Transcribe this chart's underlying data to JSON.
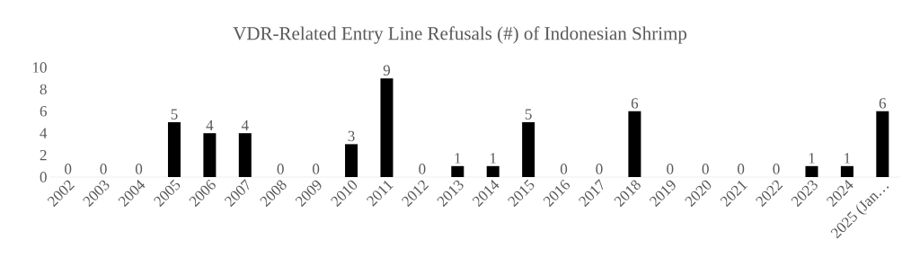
{
  "chart_data": {
    "type": "bar",
    "title": "VDR-Related Entry Line Refusals (#) of Indonesian Shrimp",
    "categories": [
      "2002",
      "2003",
      "2004",
      "2005",
      "2006",
      "2007",
      "2008",
      "2009",
      "2010",
      "2011",
      "2012",
      "2013",
      "2014",
      "2015",
      "2016",
      "2017",
      "2018",
      "2019",
      "2020",
      "2021",
      "2022",
      "2023",
      "2024",
      "2025 (Jan…"
    ],
    "values": [
      0,
      0,
      0,
      5,
      4,
      4,
      0,
      0,
      3,
      9,
      0,
      1,
      1,
      5,
      0,
      0,
      6,
      0,
      0,
      0,
      0,
      1,
      1,
      6
    ],
    "color": "#000000",
    "ylim": [
      0,
      10
    ],
    "yticks": [
      0,
      2,
      4,
      6,
      8,
      10
    ],
    "data_labels": true
  }
}
